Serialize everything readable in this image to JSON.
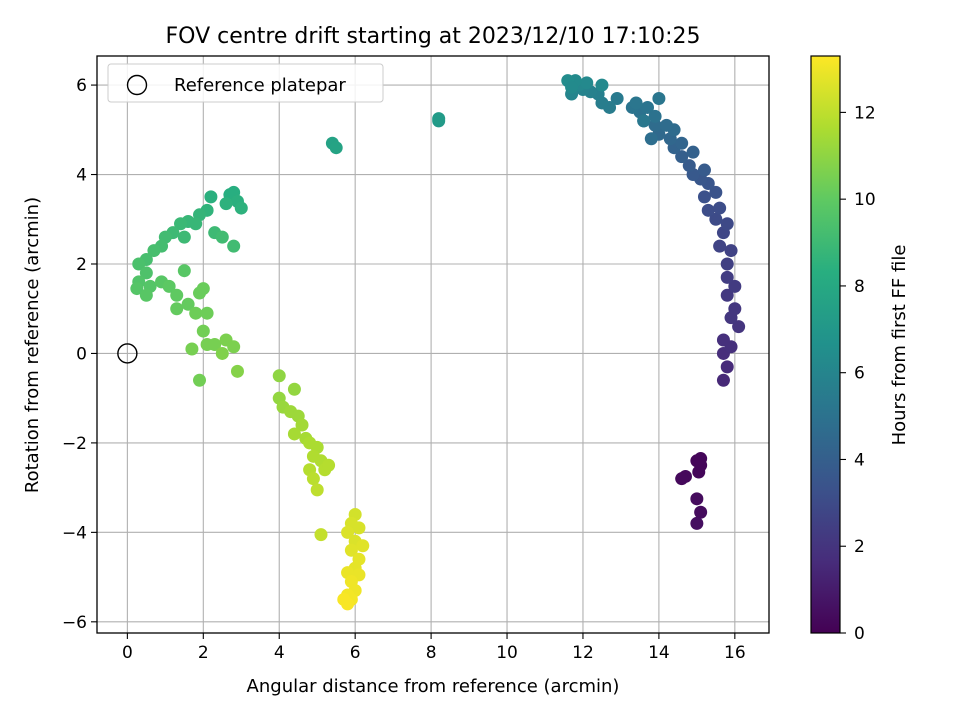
{
  "chart_data": {
    "type": "scatter",
    "title": "FOV centre drift starting at 2023/12/10 17:10:25",
    "xlabel": "Angular distance from reference (arcmin)",
    "ylabel": "Rotation from reference (arcmin)",
    "xlim": [
      -0.8,
      16.9
    ],
    "ylim": [
      -6.25,
      6.65
    ],
    "xticks": [
      0,
      2,
      4,
      6,
      8,
      10,
      12,
      14,
      16
    ],
    "yticks": [
      -6,
      -4,
      -2,
      0,
      2,
      4,
      6
    ],
    "grid": true,
    "legend": {
      "position": "top-left",
      "entries": [
        "Reference platepar"
      ]
    },
    "reference_point": {
      "x": 0,
      "y": 0,
      "marker": "open-circle"
    },
    "colorbar": {
      "label": "Hours from first FF file",
      "colormap": "viridis",
      "range": [
        0,
        13.3
      ],
      "ticks": [
        0,
        2,
        4,
        6,
        8,
        10,
        12
      ]
    },
    "points": [
      {
        "x": 15.0,
        "y": -2.4,
        "h": 0.2
      },
      {
        "x": 15.1,
        "y": -2.5,
        "h": 0.2
      },
      {
        "x": 14.7,
        "y": -2.75,
        "h": 0.3
      },
      {
        "x": 14.6,
        "y": -2.8,
        "h": 0.3
      },
      {
        "x": 15.05,
        "y": -2.65,
        "h": 0.2
      },
      {
        "x": 15.0,
        "y": -3.25,
        "h": 0.4
      },
      {
        "x": 15.1,
        "y": -3.55,
        "h": 0.4
      },
      {
        "x": 15.0,
        "y": -3.8,
        "h": 0.5
      },
      {
        "x": 15.1,
        "y": -2.35,
        "h": 0.2
      },
      {
        "x": 15.7,
        "y": -0.6,
        "h": 1.5
      },
      {
        "x": 15.8,
        "y": -0.3,
        "h": 1.6
      },
      {
        "x": 15.7,
        "y": 0.0,
        "h": 1.7
      },
      {
        "x": 15.9,
        "y": 0.15,
        "h": 1.8
      },
      {
        "x": 15.7,
        "y": 0.3,
        "h": 1.8
      },
      {
        "x": 16.1,
        "y": 0.6,
        "h": 2.0
      },
      {
        "x": 15.9,
        "y": 0.8,
        "h": 2.1
      },
      {
        "x": 16.0,
        "y": 1.0,
        "h": 2.1
      },
      {
        "x": 15.8,
        "y": 1.3,
        "h": 2.2
      },
      {
        "x": 16.0,
        "y": 1.5,
        "h": 2.3
      },
      {
        "x": 15.8,
        "y": 1.7,
        "h": 2.4
      },
      {
        "x": 15.8,
        "y": 2.0,
        "h": 2.5
      },
      {
        "x": 15.9,
        "y": 2.3,
        "h": 2.6
      },
      {
        "x": 15.6,
        "y": 2.4,
        "h": 2.7
      },
      {
        "x": 15.7,
        "y": 2.7,
        "h": 2.8
      },
      {
        "x": 15.8,
        "y": 2.9,
        "h": 2.9
      },
      {
        "x": 15.5,
        "y": 3.0,
        "h": 3.0
      },
      {
        "x": 15.3,
        "y": 3.2,
        "h": 3.1
      },
      {
        "x": 15.6,
        "y": 3.25,
        "h": 3.1
      },
      {
        "x": 15.2,
        "y": 3.5,
        "h": 3.3
      },
      {
        "x": 15.5,
        "y": 3.6,
        "h": 3.4
      },
      {
        "x": 15.3,
        "y": 3.8,
        "h": 3.5
      },
      {
        "x": 15.1,
        "y": 3.9,
        "h": 3.6
      },
      {
        "x": 14.9,
        "y": 4.0,
        "h": 3.7
      },
      {
        "x": 15.2,
        "y": 4.1,
        "h": 3.8
      },
      {
        "x": 14.8,
        "y": 4.2,
        "h": 3.8
      },
      {
        "x": 14.6,
        "y": 4.4,
        "h": 4.0
      },
      {
        "x": 14.9,
        "y": 4.5,
        "h": 4.1
      },
      {
        "x": 14.4,
        "y": 4.6,
        "h": 4.2
      },
      {
        "x": 14.6,
        "y": 4.7,
        "h": 4.3
      },
      {
        "x": 14.3,
        "y": 4.8,
        "h": 4.4
      },
      {
        "x": 14.0,
        "y": 4.9,
        "h": 4.5
      },
      {
        "x": 14.4,
        "y": 5.0,
        "h": 4.6
      },
      {
        "x": 13.9,
        "y": 5.1,
        "h": 4.7
      },
      {
        "x": 14.2,
        "y": 5.1,
        "h": 4.7
      },
      {
        "x": 13.8,
        "y": 4.8,
        "h": 4.8
      },
      {
        "x": 13.6,
        "y": 5.2,
        "h": 4.9
      },
      {
        "x": 13.5,
        "y": 5.4,
        "h": 5.0
      },
      {
        "x": 13.3,
        "y": 5.5,
        "h": 5.1
      },
      {
        "x": 13.7,
        "y": 5.5,
        "h": 5.1
      },
      {
        "x": 13.9,
        "y": 5.3,
        "h": 5.0
      },
      {
        "x": 13.4,
        "y": 5.6,
        "h": 5.2
      },
      {
        "x": 14.0,
        "y": 5.7,
        "h": 5.2
      },
      {
        "x": 13.6,
        "y": 5.2,
        "h": 5.3
      },
      {
        "x": 12.9,
        "y": 5.7,
        "h": 5.4
      },
      {
        "x": 12.7,
        "y": 5.5,
        "h": 5.5
      },
      {
        "x": 12.5,
        "y": 5.6,
        "h": 5.6
      },
      {
        "x": 12.4,
        "y": 5.8,
        "h": 5.7
      },
      {
        "x": 12.2,
        "y": 5.85,
        "h": 5.8
      },
      {
        "x": 12.0,
        "y": 5.9,
        "h": 5.9
      },
      {
        "x": 11.7,
        "y": 5.8,
        "h": 6.0
      },
      {
        "x": 11.9,
        "y": 6.0,
        "h": 6.1
      },
      {
        "x": 12.1,
        "y": 6.05,
        "h": 6.2
      },
      {
        "x": 11.8,
        "y": 6.1,
        "h": 6.3
      },
      {
        "x": 11.6,
        "y": 6.1,
        "h": 6.4
      },
      {
        "x": 12.5,
        "y": 6.0,
        "h": 6.2
      },
      {
        "x": 11.7,
        "y": 5.95,
        "h": 6.3
      },
      {
        "x": 8.2,
        "y": 5.2,
        "h": 7.1
      },
      {
        "x": 8.2,
        "y": 5.25,
        "h": 7.2
      },
      {
        "x": 5.4,
        "y": 4.7,
        "h": 7.6
      },
      {
        "x": 5.5,
        "y": 4.6,
        "h": 7.7
      },
      {
        "x": 2.7,
        "y": 3.55,
        "h": 8.3
      },
      {
        "x": 2.8,
        "y": 3.6,
        "h": 8.3
      },
      {
        "x": 2.2,
        "y": 3.5,
        "h": 8.4
      },
      {
        "x": 2.9,
        "y": 3.4,
        "h": 8.4
      },
      {
        "x": 3.0,
        "y": 3.25,
        "h": 8.5
      },
      {
        "x": 2.6,
        "y": 3.35,
        "h": 8.5
      },
      {
        "x": 2.1,
        "y": 3.2,
        "h": 8.6
      },
      {
        "x": 1.9,
        "y": 3.1,
        "h": 8.7
      },
      {
        "x": 1.8,
        "y": 2.9,
        "h": 8.8
      },
      {
        "x": 1.6,
        "y": 2.95,
        "h": 8.8
      },
      {
        "x": 1.4,
        "y": 2.9,
        "h": 8.9
      },
      {
        "x": 1.5,
        "y": 2.6,
        "h": 9.0
      },
      {
        "x": 1.2,
        "y": 2.7,
        "h": 9.0
      },
      {
        "x": 2.3,
        "y": 2.7,
        "h": 9.0
      },
      {
        "x": 2.5,
        "y": 2.6,
        "h": 9.1
      },
      {
        "x": 2.8,
        "y": 2.4,
        "h": 9.1
      },
      {
        "x": 1.0,
        "y": 2.6,
        "h": 9.1
      },
      {
        "x": 0.9,
        "y": 2.4,
        "h": 9.2
      },
      {
        "x": 0.7,
        "y": 2.3,
        "h": 9.3
      },
      {
        "x": 0.5,
        "y": 2.1,
        "h": 9.3
      },
      {
        "x": 0.3,
        "y": 2.0,
        "h": 9.4
      },
      {
        "x": 0.5,
        "y": 1.8,
        "h": 9.5
      },
      {
        "x": 0.3,
        "y": 1.6,
        "h": 9.6
      },
      {
        "x": 0.6,
        "y": 1.5,
        "h": 9.7
      },
      {
        "x": 0.25,
        "y": 1.45,
        "h": 9.7
      },
      {
        "x": 0.5,
        "y": 1.3,
        "h": 9.8
      },
      {
        "x": 0.9,
        "y": 1.6,
        "h": 9.8
      },
      {
        "x": 1.1,
        "y": 1.5,
        "h": 9.9
      },
      {
        "x": 1.3,
        "y": 1.3,
        "h": 10.0
      },
      {
        "x": 1.5,
        "y": 1.85,
        "h": 9.8
      },
      {
        "x": 1.3,
        "y": 1.0,
        "h": 10.1
      },
      {
        "x": 1.6,
        "y": 1.1,
        "h": 10.1
      },
      {
        "x": 1.9,
        "y": 1.35,
        "h": 10.2
      },
      {
        "x": 2.0,
        "y": 1.45,
        "h": 10.2
      },
      {
        "x": 1.8,
        "y": 0.9,
        "h": 10.3
      },
      {
        "x": 2.1,
        "y": 0.9,
        "h": 10.3
      },
      {
        "x": 2.0,
        "y": 0.5,
        "h": 10.4
      },
      {
        "x": 2.1,
        "y": 0.2,
        "h": 10.5
      },
      {
        "x": 2.3,
        "y": 0.2,
        "h": 10.5
      },
      {
        "x": 2.6,
        "y": 0.3,
        "h": 10.6
      },
      {
        "x": 2.8,
        "y": 0.15,
        "h": 10.6
      },
      {
        "x": 1.7,
        "y": 0.1,
        "h": 10.5
      },
      {
        "x": 2.5,
        "y": 0.0,
        "h": 10.7
      },
      {
        "x": 1.9,
        "y": -0.6,
        "h": 10.4
      },
      {
        "x": 2.9,
        "y": -0.4,
        "h": 10.8
      },
      {
        "x": 4.0,
        "y": -0.5,
        "h": 11.0
      },
      {
        "x": 4.4,
        "y": -0.8,
        "h": 11.1
      },
      {
        "x": 4.0,
        "y": -1.0,
        "h": 11.1
      },
      {
        "x": 4.1,
        "y": -1.2,
        "h": 11.2
      },
      {
        "x": 4.3,
        "y": -1.3,
        "h": 11.3
      },
      {
        "x": 4.5,
        "y": -1.4,
        "h": 11.3
      },
      {
        "x": 4.6,
        "y": -1.6,
        "h": 11.4
      },
      {
        "x": 4.4,
        "y": -1.8,
        "h": 11.5
      },
      {
        "x": 4.7,
        "y": -1.9,
        "h": 11.5
      },
      {
        "x": 4.8,
        "y": -2.0,
        "h": 11.6
      },
      {
        "x": 5.0,
        "y": -2.1,
        "h": 11.6
      },
      {
        "x": 4.9,
        "y": -2.3,
        "h": 11.7
      },
      {
        "x": 5.1,
        "y": -2.4,
        "h": 11.7
      },
      {
        "x": 4.8,
        "y": -2.6,
        "h": 11.8
      },
      {
        "x": 5.2,
        "y": -2.6,
        "h": 11.8
      },
      {
        "x": 5.3,
        "y": -2.5,
        "h": 11.8
      },
      {
        "x": 4.9,
        "y": -2.8,
        "h": 11.9
      },
      {
        "x": 5.0,
        "y": -3.05,
        "h": 12.0
      },
      {
        "x": 5.1,
        "y": -4.05,
        "h": 12.1
      },
      {
        "x": 6.0,
        "y": -3.6,
        "h": 12.4
      },
      {
        "x": 5.9,
        "y": -3.8,
        "h": 12.5
      },
      {
        "x": 6.1,
        "y": -3.9,
        "h": 12.5
      },
      {
        "x": 5.8,
        "y": -4.0,
        "h": 12.6
      },
      {
        "x": 6.0,
        "y": -4.2,
        "h": 12.6
      },
      {
        "x": 6.2,
        "y": -4.3,
        "h": 12.7
      },
      {
        "x": 5.9,
        "y": -4.4,
        "h": 12.7
      },
      {
        "x": 6.1,
        "y": -4.6,
        "h": 12.8
      },
      {
        "x": 6.0,
        "y": -4.8,
        "h": 12.8
      },
      {
        "x": 5.8,
        "y": -4.9,
        "h": 12.9
      },
      {
        "x": 6.1,
        "y": -4.95,
        "h": 12.9
      },
      {
        "x": 5.9,
        "y": -5.1,
        "h": 13.0
      },
      {
        "x": 6.0,
        "y": -5.3,
        "h": 13.0
      },
      {
        "x": 5.8,
        "y": -5.4,
        "h": 13.1
      },
      {
        "x": 5.9,
        "y": -5.5,
        "h": 13.1
      },
      {
        "x": 5.7,
        "y": -5.5,
        "h": 13.2
      },
      {
        "x": 5.8,
        "y": -5.6,
        "h": 13.2
      }
    ]
  }
}
